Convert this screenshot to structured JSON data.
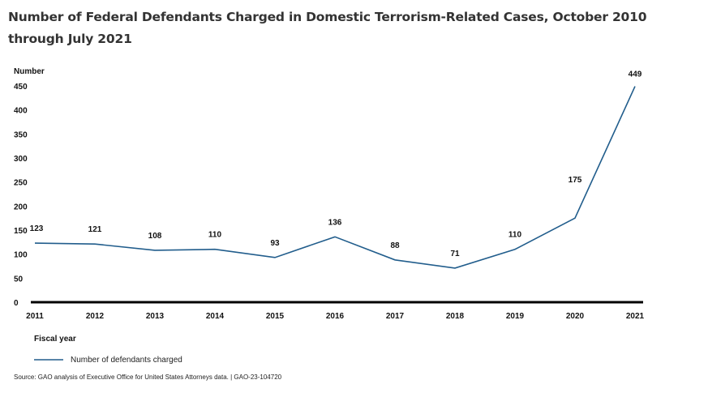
{
  "chart_data": {
    "type": "line",
    "title": "Number of Federal Defendants Charged in Domestic Terrorism-Related Cases, October 2010 through July 2021",
    "xlabel": "Fiscal year",
    "ylabel": "Number",
    "ylim": [
      0,
      450
    ],
    "yticks": [
      0,
      50,
      100,
      150,
      200,
      250,
      300,
      350,
      400,
      450
    ],
    "categories": [
      "2011",
      "2012",
      "2013",
      "2014",
      "2015",
      "2016",
      "2017",
      "2018",
      "2019",
      "2020",
      "2021"
    ],
    "series": [
      {
        "name": "Number of defendants charged",
        "values": [
          123,
          121,
          108,
          110,
          93,
          136,
          88,
          71,
          110,
          175,
          449
        ],
        "color": "#215d8c"
      }
    ],
    "grid": false,
    "legend": "bottom-left"
  },
  "source": "Source: GAO analysis of Executive Office for United States Attorneys data.  |  GAO-23-104720"
}
